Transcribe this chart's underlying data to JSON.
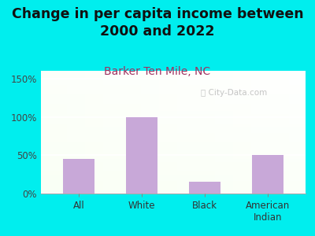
{
  "categories": [
    "All",
    "White",
    "Black",
    "American\nIndian"
  ],
  "values": [
    45,
    100,
    15,
    50
  ],
  "bar_color": "#C8A8D8",
  "title": "Change in per capita income between\n2000 and 2022",
  "subtitle": "Barker Ten Mile, NC",
  "title_fontsize": 12.5,
  "subtitle_fontsize": 10,
  "title_color": "#111111",
  "subtitle_color": "#a03060",
  "background_color": "#00EEEE",
  "ylim": [
    0,
    160
  ],
  "yticks": [
    0,
    50,
    100,
    150
  ],
  "ytick_labels": [
    "0%",
    "50%",
    "100%",
    "150%"
  ],
  "watermark": "ⓘ City-Data.com",
  "grid_color": "#ffffff",
  "tick_color": "#888888",
  "spine_color": "#aaaaaa"
}
